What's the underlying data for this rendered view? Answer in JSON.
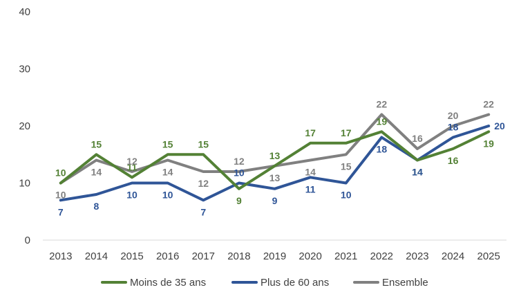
{
  "chart_data": {
    "type": "line",
    "title": "",
    "xlabel": "",
    "ylabel": "",
    "ylim": [
      0,
      40
    ],
    "yticks": [
      0,
      10,
      20,
      30,
      40
    ],
    "grid": false,
    "legend_position": "bottom",
    "x": [
      "2013",
      "2014",
      "2015",
      "2016",
      "2017",
      "2018",
      "2019",
      "2020",
      "2021",
      "2022",
      "2023",
      "2024",
      "2025"
    ],
    "series": [
      {
        "name": "Moins de 35 ans",
        "color": "#538135",
        "values": [
          10,
          15,
          11,
          15,
          15,
          9,
          13,
          17,
          17,
          19,
          14,
          16,
          19
        ],
        "label_pos": [
          "above",
          "above",
          "above",
          "above",
          "above",
          "below",
          "above",
          "above",
          "above",
          "above",
          "below",
          "below",
          "below"
        ]
      },
      {
        "name": "Plus de 60 ans",
        "color": "#2F5597",
        "values": [
          7,
          8,
          10,
          10,
          7,
          10,
          9,
          11,
          10,
          18,
          14,
          18,
          20
        ],
        "label_pos": [
          "below",
          "below",
          "below",
          "below",
          "below",
          "above",
          "below",
          "below",
          "below",
          "below",
          "below",
          "above",
          "right"
        ]
      },
      {
        "name": "Ensemble",
        "color": "#808080",
        "values": [
          10,
          14,
          12,
          14,
          12,
          12,
          13,
          14,
          15,
          22,
          16,
          20,
          22
        ],
        "label_pos": [
          "below",
          "below",
          "above",
          "below",
          "below",
          "above",
          "below",
          "below",
          "below",
          "above",
          "above",
          "above",
          "above"
        ]
      }
    ]
  }
}
